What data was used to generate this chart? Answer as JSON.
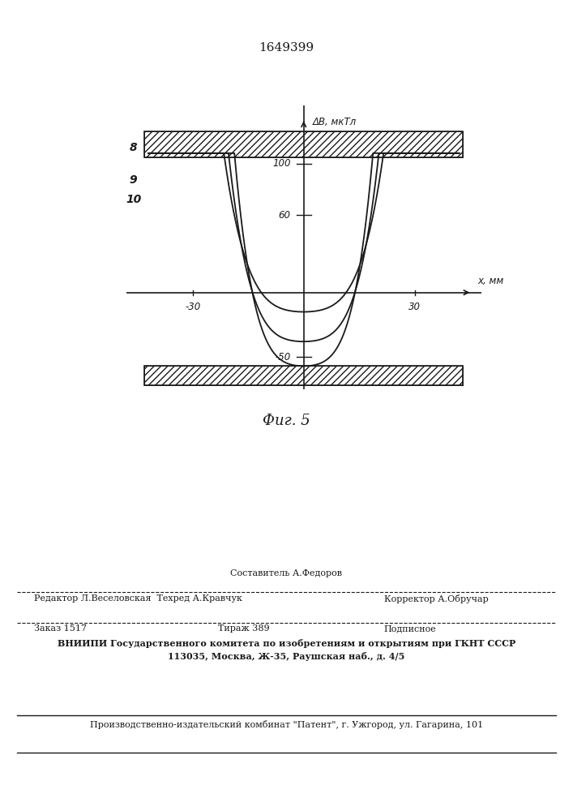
{
  "title_patent": "1649399",
  "fig_label": "Фиг. 5",
  "ylabel": "ΔВ, мкТл",
  "xlabel": "х, мм",
  "xlim": [
    -46,
    46
  ],
  "ylim": [
    -70,
    140
  ],
  "xticks": [
    -30,
    30
  ],
  "yticks": [
    -50,
    60,
    100
  ],
  "curve_labels": [
    "8",
    "9",
    "10"
  ],
  "background_color": "#ffffff",
  "line_color": "#1a1a1a",
  "footer_line1": "Составитель А.Федоров",
  "footer_line2": "Редактор Л.Веселовская  Техред А.Кравчук",
  "footer_corrector": "Корректор А.Обручар",
  "footer_zakaz": "Заказ 1517",
  "footer_tirazh": "Тираж 389",
  "footer_podpisnoe": "Подписное",
  "footer_vniip1": "ВНИИПИ Государственного комитета по изобретениям и открытиям при ГКНТ СССР",
  "footer_vniip2": "113035, Москва, Ж-35, Раушская наб., д. 4/5",
  "footer_zavod": "Производственно-издательский комбинат \"Патент\", г. Ужгород, ул. Гагарина, 101"
}
